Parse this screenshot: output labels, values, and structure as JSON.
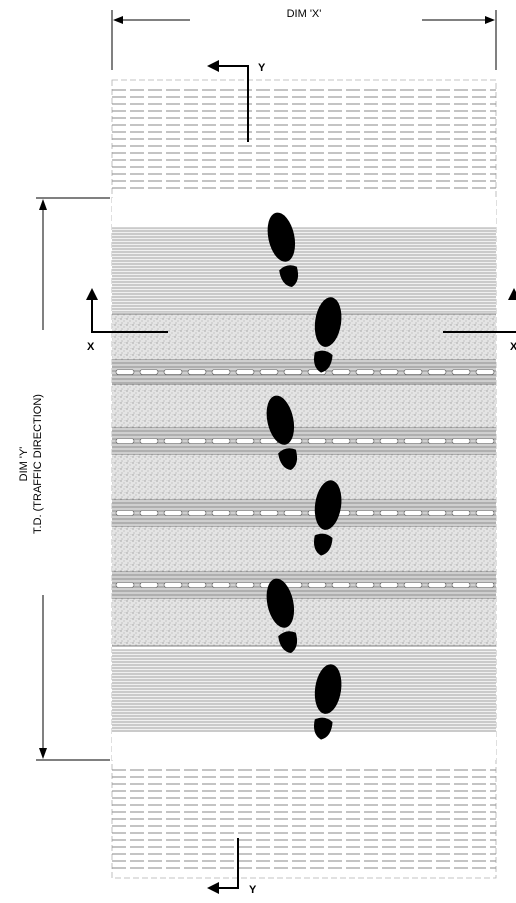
{
  "dimensions": {
    "width_label": "DIM 'X'",
    "height_label_line1": "DIM 'Y'",
    "height_label_line2": "T.D. (TRAFFIC DIRECTION)"
  },
  "section_markers": {
    "top_y": "Y",
    "bottom_y": "Y",
    "left_x": "X",
    "right_x": "X"
  },
  "mat": {
    "footprints": 6,
    "colors": {
      "line": "#000000",
      "rail": "#8c8c8c",
      "grit": "#d9d9d9",
      "dash": "#9a9a9a"
    }
  }
}
